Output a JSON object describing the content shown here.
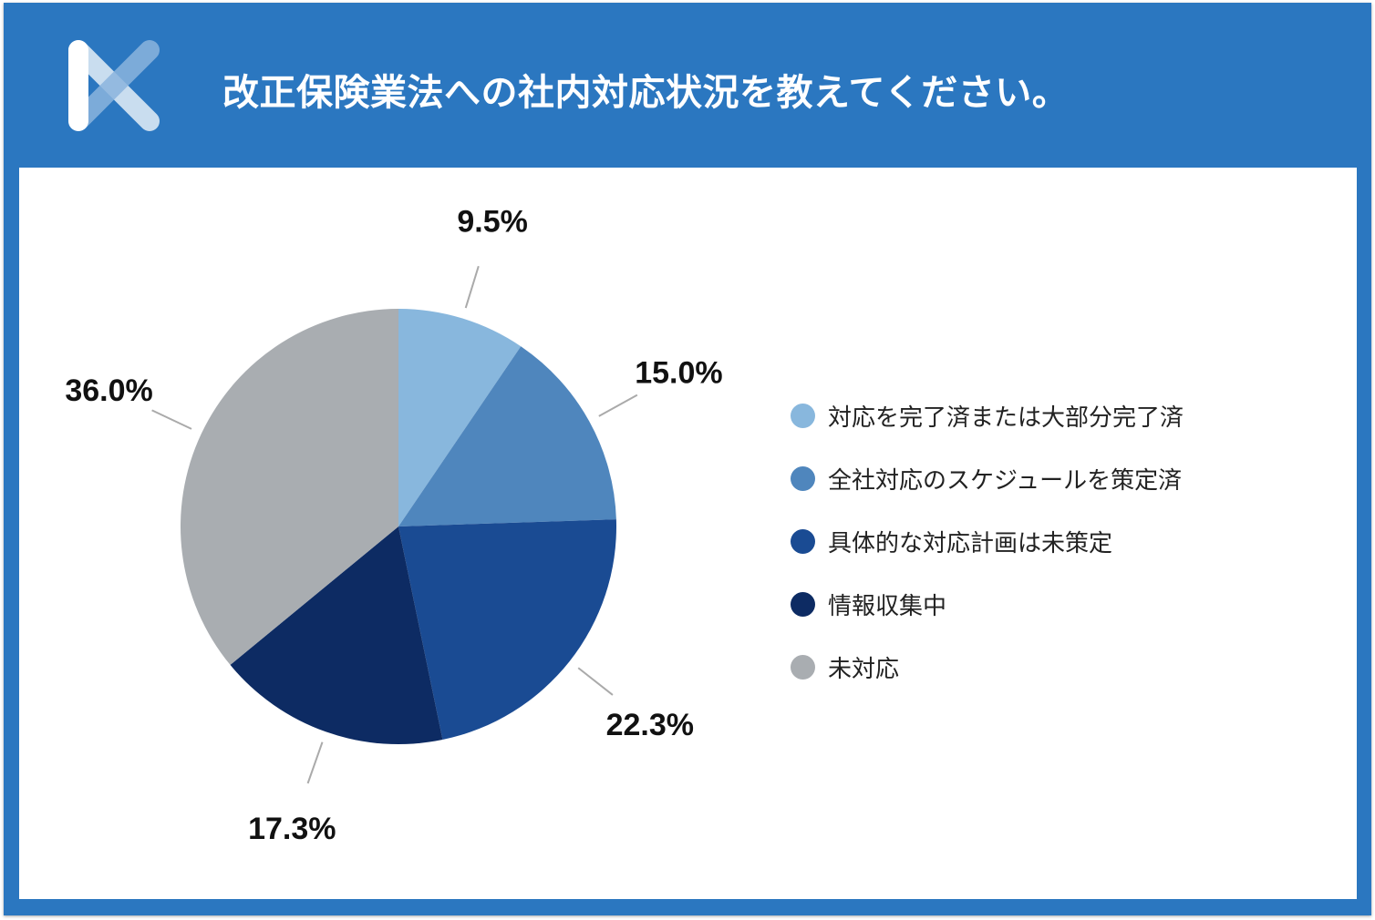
{
  "title": "改正保険業法への社内対応状況を教えてください。",
  "logo": {
    "icon": "x-logo-icon",
    "colors": [
      "#ffffff",
      "#8bb4dd"
    ]
  },
  "colors": {
    "header_bg": "#2b77c0",
    "panel_bg": "#ffffff",
    "leader_line": "#aaaaaa"
  },
  "chart_data": {
    "type": "pie",
    "title": "改正保険業法への社内対応状況を教えてください。",
    "start_angle_deg": 0,
    "direction": "clockwise",
    "legend_position": "right",
    "series": [
      {
        "name": "対応を完了済または大部分完了済",
        "value": 9.5,
        "label": "9.5%",
        "color": "#88b7dd"
      },
      {
        "name": "全社対応のスケジュールを策定済",
        "value": 15.0,
        "label": "15.0%",
        "color": "#4f86bd"
      },
      {
        "name": "具体的な対応計画は未策定",
        "value": 22.3,
        "label": "22.3%",
        "color": "#1a4b93"
      },
      {
        "name": "情報収集中",
        "value": 17.3,
        "label": "17.3%",
        "color": "#0d2b63"
      },
      {
        "name": "未対応",
        "value": 36.0,
        "label": "36.0%",
        "color": "#a9adb1"
      }
    ]
  }
}
